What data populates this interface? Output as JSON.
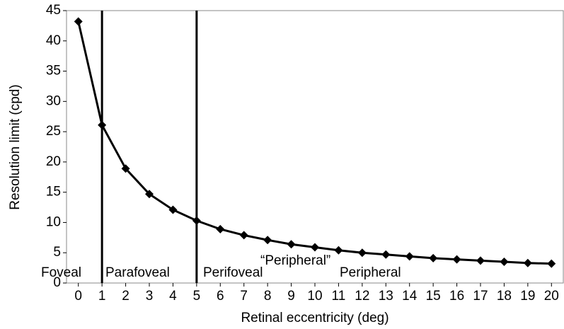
{
  "chart_data": {
    "type": "line",
    "x_label": "Retinal eccentricity (deg)",
    "y_label": "Resolution limit (cpd)",
    "x": [
      0,
      1,
      2,
      3,
      4,
      5,
      6,
      7,
      8,
      9,
      10,
      11,
      12,
      13,
      14,
      15,
      16,
      17,
      18,
      19,
      20
    ],
    "series": [
      {
        "name": "Resolution limit",
        "color": "#000000",
        "values": [
          43.2,
          26.1,
          18.9,
          14.7,
          12.1,
          10.3,
          8.9,
          7.9,
          7.1,
          6.4,
          5.9,
          5.4,
          5.0,
          4.7,
          4.4,
          4.1,
          3.9,
          3.7,
          3.5,
          3.3,
          3.2
        ]
      }
    ],
    "xlim": [
      -0.5,
      20.5
    ],
    "xticks": [
      0,
      1,
      2,
      3,
      4,
      5,
      6,
      7,
      8,
      9,
      10,
      11,
      12,
      13,
      14,
      15,
      16,
      17,
      18,
      19,
      20
    ],
    "ylim": [
      0,
      45
    ],
    "yticks": [
      0,
      5,
      10,
      15,
      20,
      25,
      30,
      35,
      40,
      45
    ],
    "vlines": [
      1,
      5
    ],
    "annotations": [
      "Foveal",
      "Parafoveal",
      "Perifoveal",
      "“Peripheral”",
      "Peripheral"
    ],
    "grid": false
  }
}
